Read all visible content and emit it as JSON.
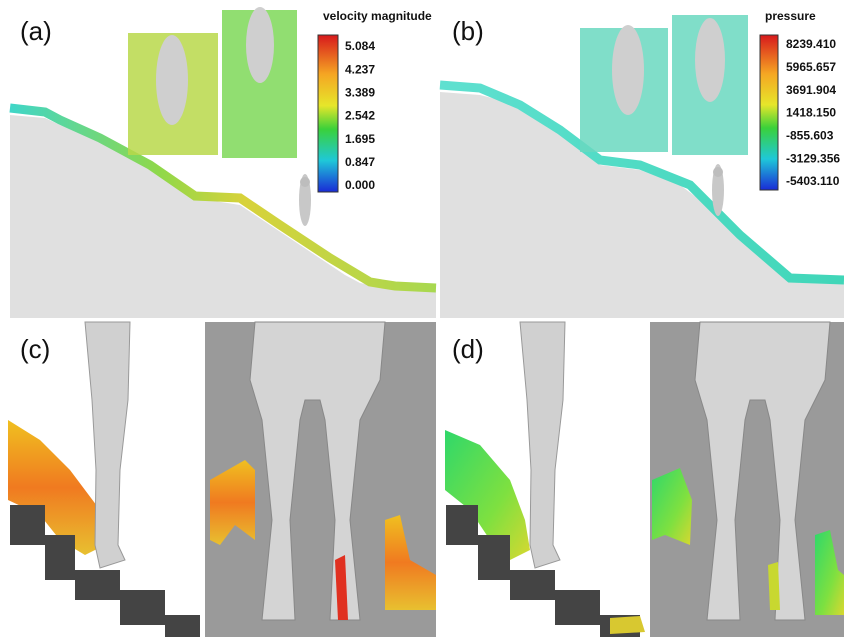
{
  "panels": [
    {
      "label": "(a)",
      "colorbar": {
        "title": "velocity magnitude",
        "labels": [
          "5.084",
          "4.237",
          "3.389",
          "2.542",
          "1.695",
          "0.847",
          "0.000"
        ]
      }
    },
    {
      "label": "(b)",
      "colorbar": {
        "title": "pressure",
        "labels": [
          "8239.410",
          "5965.657",
          "3691.904",
          "1418.150",
          "-855.603",
          "-3129.356",
          "-5403.110"
        ]
      }
    },
    {
      "label": "(c)"
    },
    {
      "label": "(d)"
    }
  ]
}
